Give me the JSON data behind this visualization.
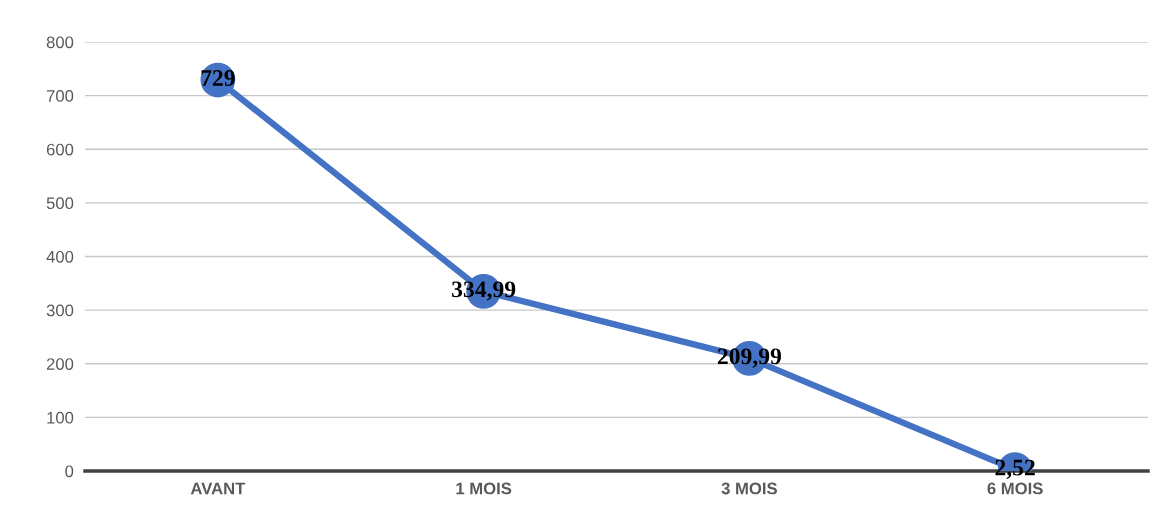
{
  "chart_data": {
    "type": "line",
    "categories": [
      "AVANT",
      "1 MOIS",
      "3 MOIS",
      "6 MOIS"
    ],
    "series": [
      {
        "color": "#4472c4",
        "values": [
          729,
          334.99,
          209.99,
          2.52
        ],
        "value_labels": [
          "729",
          "334,99",
          "209,99",
          "2,52"
        ]
      }
    ],
    "ylim": [
      0,
      800
    ],
    "yticks": [
      0,
      100,
      200,
      300,
      400,
      500,
      600,
      700,
      800
    ],
    "grid": "y",
    "marker": "circle",
    "line_style": "solid",
    "legend": false
  }
}
